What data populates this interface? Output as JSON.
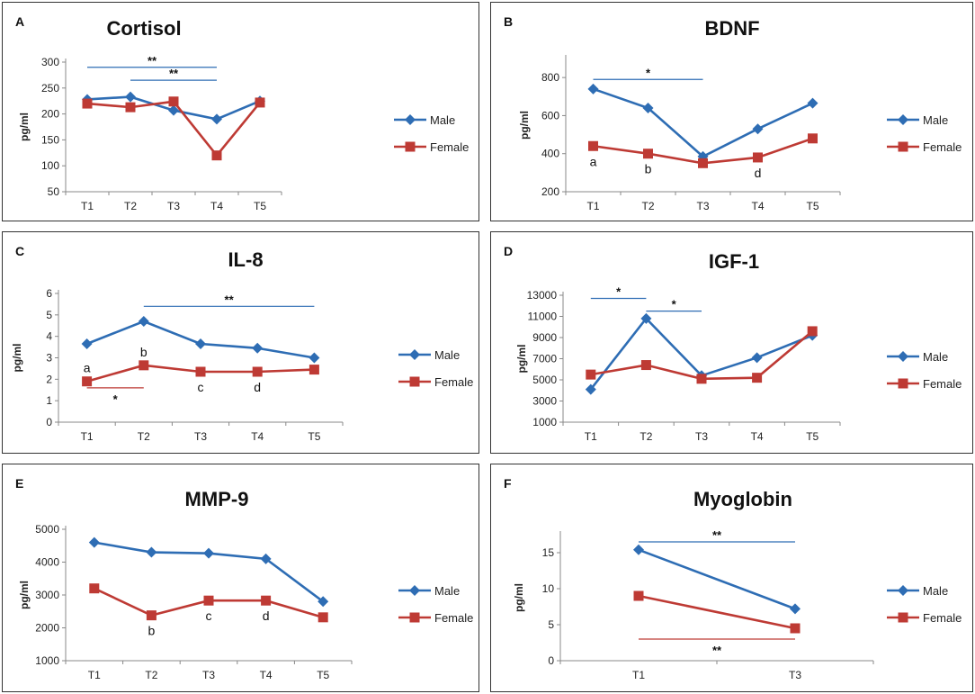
{
  "colors": {
    "male": "#2E6DB4",
    "female": "#BE3A34",
    "axis": "#888888",
    "frame": "#333333"
  },
  "chart_data": [
    {
      "panel_label": "A",
      "type": "line",
      "title": "Cortisol",
      "ylabel": "pg/ml",
      "ylim": [
        50,
        300
      ],
      "yticks": [
        50,
        100,
        150,
        200,
        250,
        300
      ],
      "categories": [
        "T1",
        "T2",
        "T3",
        "T4",
        "T5"
      ],
      "series": [
        {
          "name": "Male",
          "values": [
            228,
            233,
            207,
            190,
            225
          ]
        },
        {
          "name": "Female",
          "values": [
            220,
            213,
            224,
            120,
            222
          ]
        }
      ],
      "point_labels": [],
      "sig_bars": [
        {
          "from": 0,
          "to": 3,
          "y": 290,
          "label": "**",
          "color": "male",
          "label_pos": "above"
        },
        {
          "from": 1,
          "to": 3,
          "y": 265,
          "label": "**",
          "color": "male",
          "label_pos": "above"
        }
      ]
    },
    {
      "panel_label": "B",
      "type": "line",
      "title": "BDNF",
      "ylabel": "pg/ml",
      "ylim": [
        200,
        900
      ],
      "yticks": [
        200,
        400,
        600,
        800
      ],
      "categories": [
        "T1",
        "T2",
        "T3",
        "T4",
        "T5"
      ],
      "series": [
        {
          "name": "Male",
          "values": [
            740,
            640,
            385,
            530,
            665
          ]
        },
        {
          "name": "Female",
          "values": [
            440,
            400,
            350,
            380,
            480
          ]
        }
      ],
      "point_labels": [
        {
          "index": 0,
          "text": "a"
        },
        {
          "index": 1,
          "text": "b"
        },
        {
          "index": 3,
          "text": "d"
        }
      ],
      "sig_bars": [
        {
          "from": 0,
          "to": 2,
          "y": 790,
          "label": "*",
          "color": "male",
          "label_pos": "above"
        }
      ]
    },
    {
      "panel_label": "C",
      "type": "line",
      "title": "IL-8",
      "ylabel": "pg/ml",
      "ylim": [
        0,
        6
      ],
      "yticks": [
        0,
        1,
        2,
        3,
        4,
        5,
        6
      ],
      "categories": [
        "T1",
        "T2",
        "T3",
        "T4",
        "T5"
      ],
      "series": [
        {
          "name": "Male",
          "values": [
            3.65,
            4.7,
            3.65,
            3.45,
            3.0
          ]
        },
        {
          "name": "Female",
          "values": [
            1.9,
            2.65,
            2.35,
            2.35,
            2.45
          ]
        }
      ],
      "point_labels": [
        {
          "index": 0,
          "text": "a",
          "pos": "above"
        },
        {
          "index": 1,
          "text": "b",
          "pos": "above"
        },
        {
          "index": 2,
          "text": "c",
          "pos": "below"
        },
        {
          "index": 3,
          "text": "d",
          "pos": "below"
        }
      ],
      "sig_bars": [
        {
          "from": 1,
          "to": 4,
          "y": 5.4,
          "label": "**",
          "color": "male",
          "label_pos": "above"
        },
        {
          "from": 0,
          "to": 1,
          "y": 1.6,
          "label": "*",
          "color": "female",
          "label_pos": "below"
        }
      ]
    },
    {
      "panel_label": "D",
      "type": "line",
      "title": "IGF-1",
      "ylabel": "pg/ml",
      "ylim": [
        1000,
        13000
      ],
      "yticks": [
        1000,
        3000,
        5000,
        7000,
        9000,
        11000,
        13000
      ],
      "categories": [
        "T1",
        "T2",
        "T3",
        "T4",
        "T5"
      ],
      "series": [
        {
          "name": "Male",
          "values": [
            4100,
            10800,
            5400,
            7100,
            9200
          ]
        },
        {
          "name": "Female",
          "values": [
            5500,
            6400,
            5100,
            5200,
            9600
          ]
        }
      ],
      "point_labels": [],
      "sig_bars": [
        {
          "from": 0,
          "to": 1,
          "y": 12700,
          "label": "*",
          "color": "male",
          "label_pos": "above"
        },
        {
          "from": 1,
          "to": 2,
          "y": 11500,
          "label": "*",
          "color": "male",
          "label_pos": "above"
        }
      ]
    },
    {
      "panel_label": "E",
      "type": "line",
      "title": "MMP-9",
      "ylabel": "pg/ml",
      "ylim": [
        1000,
        5000
      ],
      "yticks": [
        1000,
        2000,
        3000,
        4000,
        5000
      ],
      "categories": [
        "T1",
        "T2",
        "T3",
        "T4",
        "T5"
      ],
      "series": [
        {
          "name": "Male",
          "values": [
            4600,
            4300,
            4270,
            4100,
            2800
          ]
        },
        {
          "name": "Female",
          "values": [
            3200,
            2380,
            2830,
            2830,
            2320
          ]
        }
      ],
      "point_labels": [
        {
          "index": 1,
          "text": "b"
        },
        {
          "index": 2,
          "text": "c"
        },
        {
          "index": 3,
          "text": "d"
        }
      ],
      "sig_bars": []
    },
    {
      "panel_label": "F",
      "type": "line",
      "title": "Myoglobin",
      "ylabel": "pg/ml",
      "ylim": [
        0,
        17.5
      ],
      "yticks": [
        0,
        5,
        10,
        15
      ],
      "categories": [
        "T1",
        "T3"
      ],
      "series": [
        {
          "name": "Male",
          "values": [
            15.4,
            7.2
          ]
        },
        {
          "name": "Female",
          "values": [
            9.0,
            4.5
          ]
        }
      ],
      "point_labels": [],
      "sig_bars": [
        {
          "from": 0,
          "to": 1,
          "y": 16.5,
          "label": "**",
          "color": "male",
          "label_pos": "above"
        },
        {
          "from": 0,
          "to": 1,
          "y": 3.0,
          "label": "**",
          "color": "female",
          "label_pos": "below"
        }
      ]
    }
  ]
}
